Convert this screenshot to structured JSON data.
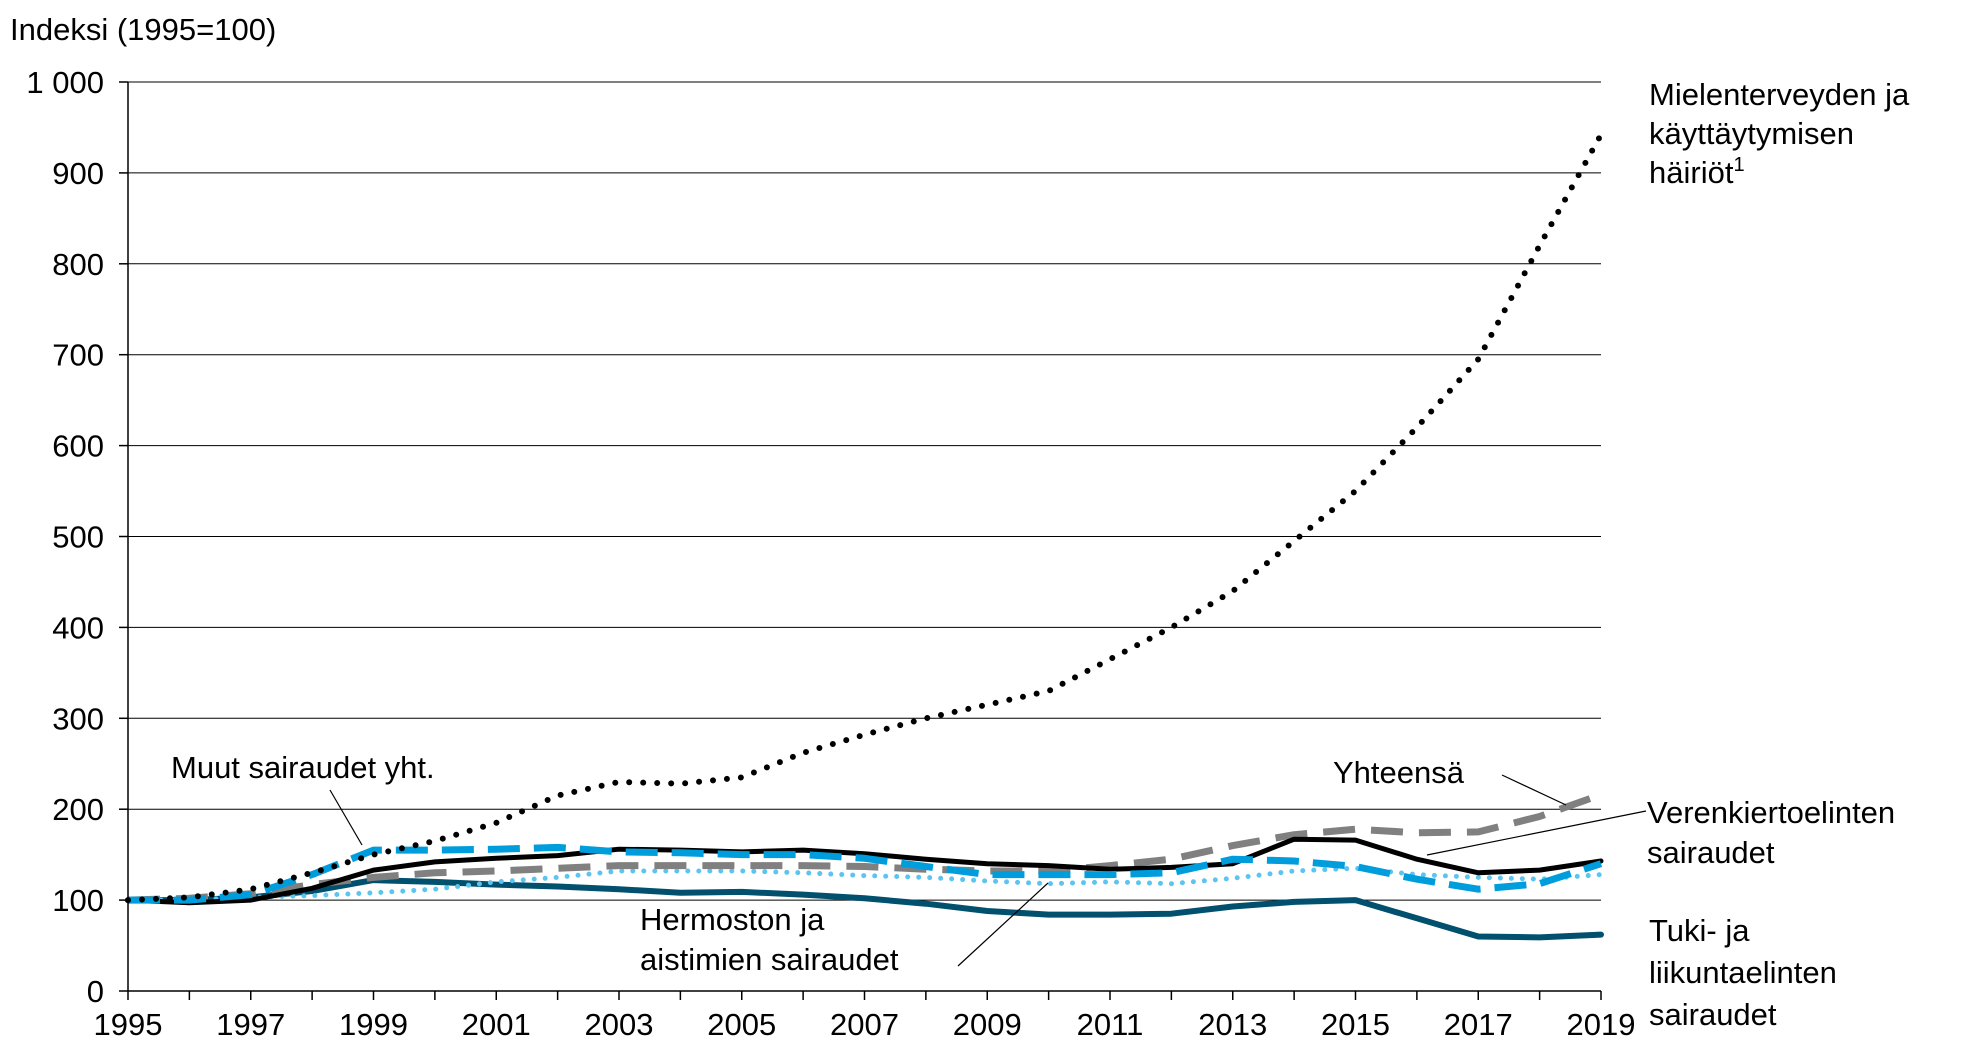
{
  "chart_data": {
    "type": "line",
    "ylabel": "Indeksi (1995=100)",
    "xlabel": "",
    "ylim": [
      0,
      1000
    ],
    "yticks": [
      {
        "value": 0,
        "label": "0"
      },
      {
        "value": 100,
        "label": "100"
      },
      {
        "value": 200,
        "label": "200"
      },
      {
        "value": 300,
        "label": "300"
      },
      {
        "value": 400,
        "label": "400"
      },
      {
        "value": 500,
        "label": "500"
      },
      {
        "value": 600,
        "label": "600"
      },
      {
        "value": 700,
        "label": "700"
      },
      {
        "value": 800,
        "label": "800"
      },
      {
        "value": 900,
        "label": "900"
      },
      {
        "value": 1000,
        "label": "1 000"
      }
    ],
    "x": [
      1995,
      1996,
      1997,
      1998,
      1999,
      2000,
      2001,
      2002,
      2003,
      2004,
      2005,
      2006,
      2007,
      2008,
      2009,
      2010,
      2011,
      2012,
      2013,
      2014,
      2015,
      2016,
      2017,
      2018,
      2019
    ],
    "xticks": [
      {
        "value": 1995,
        "label": "1995"
      },
      {
        "value": 1997,
        "label": "1997"
      },
      {
        "value": 1999,
        "label": "1999"
      },
      {
        "value": 2001,
        "label": "2001"
      },
      {
        "value": 2003,
        "label": "2003"
      },
      {
        "value": 2005,
        "label": "2005"
      },
      {
        "value": 2007,
        "label": "2007"
      },
      {
        "value": 2009,
        "label": "2009"
      },
      {
        "value": 2011,
        "label": "2011"
      },
      {
        "value": 2013,
        "label": "2013"
      },
      {
        "value": 2015,
        "label": "2015"
      },
      {
        "value": 2017,
        "label": "2017"
      },
      {
        "value": 2019,
        "label": "2019"
      }
    ],
    "grid": true,
    "series": [
      {
        "key": "mental",
        "color": "#000000",
        "style": "dotted",
        "values": [
          100,
          103,
          112,
          130,
          150,
          165,
          185,
          215,
          230,
          228,
          235,
          262,
          282,
          300,
          315,
          330,
          365,
          400,
          440,
          495,
          550,
          620,
          695,
          820,
          942
        ]
      },
      {
        "key": "total",
        "color": "#808080",
        "style": "dashed",
        "values": [
          100,
          102,
          107,
          117,
          125,
          130,
          132,
          135,
          138,
          138,
          138,
          138,
          137,
          134,
          132,
          132,
          138,
          145,
          160,
          172,
          178,
          174,
          175,
          192,
          216
        ]
      },
      {
        "key": "other",
        "color": "#000000",
        "style": "solid",
        "values": [
          100,
          97,
          100,
          113,
          133,
          142,
          146,
          149,
          156,
          155,
          153,
          155,
          151,
          145,
          140,
          138,
          134,
          136,
          140,
          167,
          166,
          145,
          130,
          133,
          143
        ]
      },
      {
        "key": "circulatory",
        "color": "#009ddc",
        "style": "dashed",
        "values": [
          100,
          100,
          106,
          128,
          155,
          155,
          156,
          158,
          153,
          152,
          150,
          150,
          146,
          137,
          128,
          128,
          128,
          130,
          145,
          143,
          137,
          123,
          112,
          118,
          140
        ]
      },
      {
        "key": "nervous",
        "color": "#5bc4f1",
        "style": "dotted",
        "values": [
          100,
          100,
          103,
          105,
          108,
          112,
          120,
          125,
          132,
          132,
          132,
          130,
          127,
          125,
          121,
          118,
          120,
          118,
          124,
          132,
          135,
          128,
          125,
          123,
          128
        ]
      },
      {
        "key": "musculoskeletal",
        "color": "#00506e",
        "style": "solid",
        "values": [
          100,
          100,
          103,
          110,
          122,
          120,
          117,
          115,
          112,
          108,
          109,
          106,
          102,
          96,
          88,
          84,
          84,
          85,
          93,
          98,
          100,
          80,
          60,
          59,
          62
        ]
      }
    ],
    "annotations": {
      "mental": [
        "Mielenterveyden ja",
        "käyttäytymisen",
        "häiriöt"
      ],
      "mental_sup": "1",
      "total": "Yhteensä",
      "other": "Muut sairaudet yht.",
      "circulatory": [
        "Verenkiertoelinten",
        "sairaudet"
      ],
      "nervous": [
        "Hermoston ja",
        "aistimien sairaudet"
      ],
      "musculoskeletal": [
        "Tuki- ja",
        "liikuntaelinten",
        "sairaudet"
      ]
    }
  }
}
